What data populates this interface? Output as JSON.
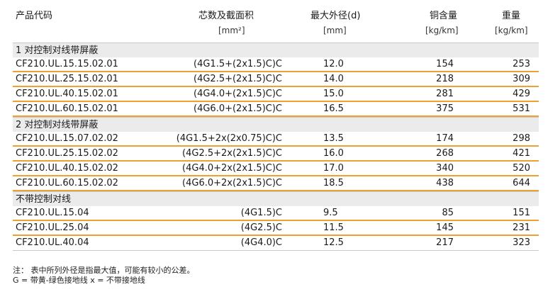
{
  "header": {
    "code": "产品代码",
    "cores": "芯数及截面积",
    "cores_unit": "[mm²]",
    "diameter": "最大外径(d)",
    "diameter_unit": "[mm]",
    "copper": "铜含量",
    "copper_unit": "[kg/km]",
    "weight": "重量",
    "weight_unit": "[kg/km]"
  },
  "groups": [
    {
      "title": "1 对控制对线带屏蔽",
      "rows": [
        {
          "code": "CF210.UL.15.15.02.01",
          "cores": "(4G1.5+(2x1.5)C)C",
          "diameter": "12.0",
          "copper": "154",
          "weight": "253"
        },
        {
          "code": "CF210.UL.25.15.02.01",
          "cores": "(4G2.5+(2x1.5)C)C",
          "diameter": "14.0",
          "copper": "218",
          "weight": "309"
        },
        {
          "code": "CF210.UL.40.15.02.01",
          "cores": "(4G4.0+(2x1.5)C)C",
          "diameter": "15.0",
          "copper": "281",
          "weight": "429"
        },
        {
          "code": "CF210.UL.60.15.02.01",
          "cores": "(4G6.0+(2x1.5)C)C",
          "diameter": "16.5",
          "copper": "375",
          "weight": "531"
        }
      ]
    },
    {
      "title": "2 对控制对线带屏蔽",
      "rows": [
        {
          "code": "CF210.UL.15.07.02.02",
          "cores": "(4G1.5+2x(2x0.75)C)C",
          "diameter": "13.5",
          "copper": "174",
          "weight": "298"
        },
        {
          "code": "CF210.UL.25.15.02.02",
          "cores": "(4G2.5+2x(2x1.5)C)C",
          "diameter": "16.0",
          "copper": "268",
          "weight": "421"
        },
        {
          "code": "CF210.UL.40.15.02.02",
          "cores": "(4G4.0+2x(2x1.5)C)C",
          "diameter": "17.0",
          "copper": "340",
          "weight": "520"
        },
        {
          "code": "CF210.UL.60.15.02.02",
          "cores": "(4G6.0+2x(2x1.5)C)C",
          "diameter": "18.5",
          "copper": "438",
          "weight": "644"
        }
      ]
    },
    {
      "title": "不带控制对线",
      "rows": [
        {
          "code": "CF210.UL.15.04",
          "cores": "(4G1.5)C",
          "diameter": "9.5",
          "copper": "85",
          "weight": "151"
        },
        {
          "code": "CF210.UL.25.04",
          "cores": "(4G2.5)C",
          "diameter": "11.5",
          "copper": "145",
          "weight": "231"
        },
        {
          "code": "CF210.UL.40.04",
          "cores": "(4G4.0)C",
          "diameter": "12.5",
          "copper": "217",
          "weight": "323"
        }
      ]
    }
  ],
  "notes": {
    "line1": "注：  表中所列外径是指最大值，可能有较小的公差。",
    "line2": "G = 带黄-绿色接地线  x = 不带接地线"
  }
}
